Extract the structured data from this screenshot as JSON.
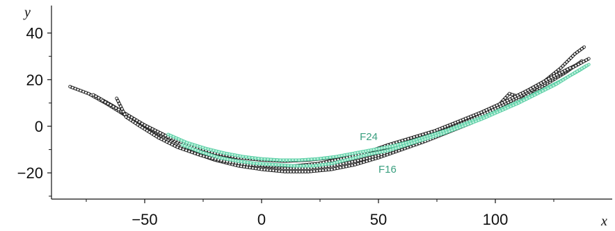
{
  "chart_data": {
    "type": "scatter",
    "title": "",
    "xlabel": "x",
    "ylabel": "y",
    "xlim": [
      -90,
      142
    ],
    "ylim": [
      -30,
      50
    ],
    "x_ticks": [
      -50,
      0,
      50,
      100
    ],
    "x_tick_labels": [
      "−50",
      "0",
      "50",
      "100"
    ],
    "y_ticks": [
      -20,
      0,
      20,
      40
    ],
    "y_tick_labels": [
      "−20",
      "0",
      "20",
      "40"
    ],
    "grid": false,
    "legend": "none",
    "annotations": [
      {
        "text": "F24",
        "x": 42,
        "y": -6
      },
      {
        "text": "F16",
        "x": 50,
        "y": -20
      }
    ],
    "series": [
      {
        "color": "#2a2a2a",
        "marker_fill": "#f0f0f0",
        "x": [
          -82,
          -74,
          -66,
          -58,
          -50,
          -40,
          -30,
          -20,
          -10,
          0,
          10,
          20,
          30,
          40,
          50,
          60,
          70,
          80,
          90,
          100,
          110,
          120,
          130,
          136
        ],
        "y": [
          17,
          14,
          9.5,
          4.5,
          -0.5,
          -5.5,
          -9.5,
          -12.5,
          -15,
          -16.5,
          -17.5,
          -17,
          -15.5,
          -13.5,
          -11,
          -8,
          -4.5,
          -1,
          3,
          8,
          13,
          18.5,
          24,
          27
        ]
      },
      {
        "color": "#2a2a2a",
        "marker_fill": "#f0f0f0",
        "x": [
          -72,
          -64,
          -56,
          -48,
          -40,
          -30,
          -20,
          -10,
          0,
          10,
          20,
          30,
          40,
          50,
          60,
          70,
          80,
          90,
          100,
          110,
          120,
          130,
          137
        ],
        "y": [
          13.5,
          9,
          4,
          -1,
          -6,
          -11,
          -14.5,
          -17,
          -18.5,
          -19.5,
          -19.5,
          -18.5,
          -16.5,
          -13.5,
          -10,
          -6.5,
          -2.5,
          1.5,
          6,
          11.5,
          17,
          23,
          28
        ]
      },
      {
        "color": "#2a2a2a",
        "marker_fill": "#f0f0f0",
        "x": [
          -60,
          -52,
          -44,
          -36,
          -28,
          -20,
          -10,
          0,
          10,
          20,
          30,
          40,
          50,
          60,
          70,
          80,
          90,
          100,
          106,
          112,
          120,
          128,
          134,
          138
        ],
        "y": [
          6,
          1.5,
          -3,
          -7,
          -10.5,
          -13,
          -15.5,
          -17,
          -18,
          -18,
          -17,
          -15,
          -12.5,
          -9,
          -5.5,
          -1.5,
          2.5,
          7.5,
          14,
          12,
          18.5,
          25,
          31,
          34
        ]
      },
      {
        "color": "#2a2a2a",
        "marker_fill": "#f0f0f0",
        "x": [
          -68,
          -60,
          -50,
          -40,
          -30,
          -20,
          -10,
          0,
          10,
          20,
          30,
          40,
          50,
          60,
          70,
          80,
          90,
          100,
          110,
          120,
          130,
          140
        ],
        "y": [
          11,
          6.5,
          0.5,
          -4.5,
          -8.5,
          -11.5,
          -13.5,
          -14.5,
          -15,
          -14.5,
          -13.5,
          -12,
          -10,
          -7.5,
          -4.5,
          -1,
          3,
          7.5,
          12.5,
          18,
          23.5,
          29
        ]
      },
      {
        "color": "#2a2a2a",
        "marker_fill": "#f0f0f0",
        "x": [
          -62,
          -58,
          -52,
          -44,
          -36,
          -26,
          -16,
          -6,
          4,
          14,
          24,
          34,
          44,
          54,
          64,
          74,
          84,
          94,
          104,
          114,
          124,
          132
        ],
        "y": [
          12,
          4,
          0,
          -5,
          -9,
          -12.5,
          -15,
          -16.5,
          -17,
          -17,
          -16,
          -14,
          -11.5,
          -8,
          -5,
          -2,
          2,
          6,
          10.5,
          15.5,
          21,
          25
        ]
      },
      {
        "color": "#5fd0a8",
        "marker_fill": "#bff0dc",
        "x": [
          -40,
          -32,
          -24,
          -16,
          -8,
          0,
          8,
          16,
          24,
          32,
          40,
          48,
          56,
          64,
          72,
          80,
          88,
          96,
          104,
          112,
          120,
          128,
          136,
          140
        ],
        "y": [
          -3.5,
          -7,
          -9.5,
          -11.5,
          -13,
          -14,
          -14.5,
          -14.5,
          -14,
          -13,
          -11.5,
          -10,
          -8.5,
          -6.5,
          -4,
          -1.5,
          1.5,
          4.5,
          8,
          11.5,
          15.5,
          19.5,
          24,
          26.5
        ]
      },
      {
        "color": "#5fd0a8",
        "marker_fill": "#bff0dc",
        "x": [
          -34,
          -26,
          -18,
          -10,
          -2,
          6,
          14,
          22,
          30,
          38,
          46,
          54,
          62,
          70,
          78,
          86,
          94,
          102,
          110,
          118,
          126,
          134,
          139
        ],
        "y": [
          -8,
          -11,
          -13.5,
          -15,
          -16,
          -16.5,
          -17,
          -17,
          -16,
          -14,
          -12,
          -10.5,
          -8,
          -5.5,
          -3,
          0,
          3,
          6.5,
          10,
          14,
          18,
          23,
          26
        ]
      }
    ]
  }
}
